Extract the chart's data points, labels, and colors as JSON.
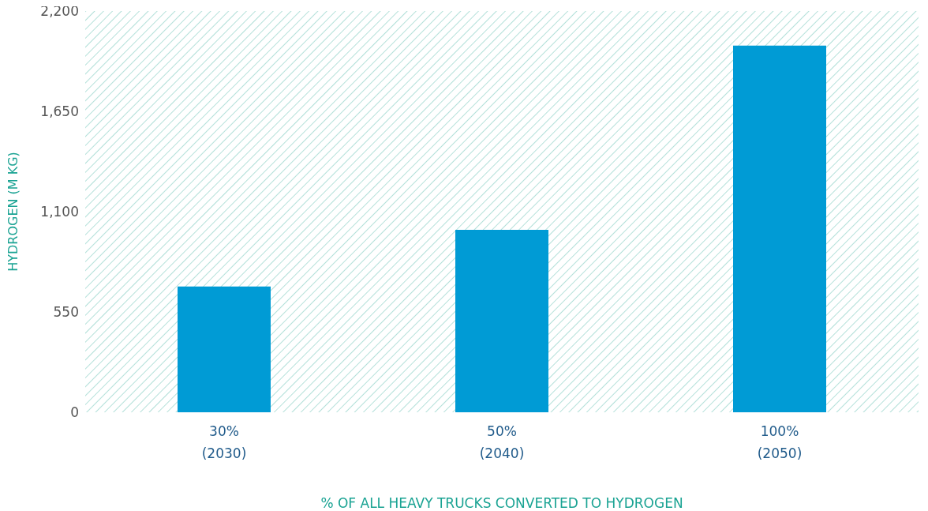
{
  "chart_data": {
    "type": "bar",
    "xlabel": "% OF ALL HEAVY TRUCKS CONVERTED TO HYDROGEN",
    "ylabel": "HYDROGEN (M KG)",
    "categories": [
      "30%\n(2030)",
      "50%\n(2040)",
      "100%\n(2050)"
    ],
    "values": [
      690,
      1000,
      2010
    ],
    "color": "#009bd5",
    "ylim": [
      0,
      2200
    ],
    "yticks": [
      0,
      550,
      {
        "value": 1100,
        "label": "1,100"
      },
      {
        "value": 1650,
        "label": "1,650"
      },
      {
        "value": 2200,
        "label": "2,200"
      }
    ],
    "grid": false,
    "legend": false
  }
}
